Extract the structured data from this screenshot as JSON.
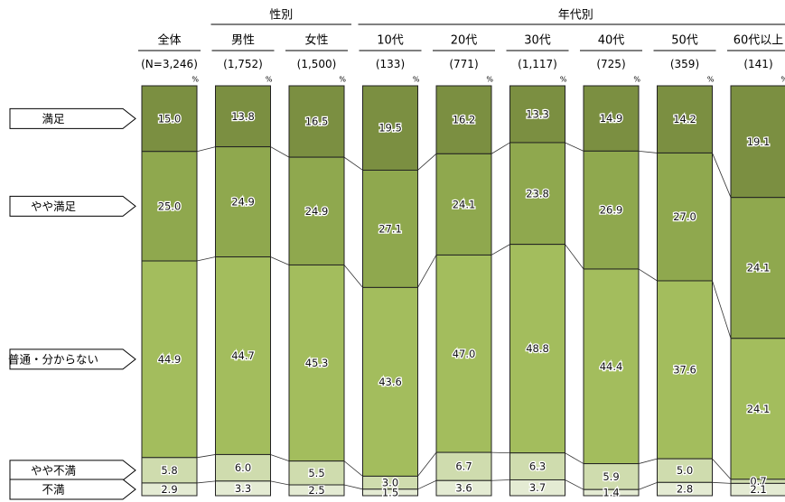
{
  "chart_data": {
    "type": "bar",
    "stacked": true,
    "orientation": "vertical",
    "unit": "%",
    "group_headers": [
      {
        "label": "性別",
        "columns": [
          1,
          2
        ]
      },
      {
        "label": "年代別",
        "columns": [
          3,
          4,
          5,
          6,
          7,
          8
        ]
      }
    ],
    "columns": [
      {
        "label": "全体",
        "n": "(N=3,246)"
      },
      {
        "label": "男性",
        "n": "(1,752)"
      },
      {
        "label": "女性",
        "n": "(1,500)"
      },
      {
        "label": "10代",
        "n": "(133)"
      },
      {
        "label": "20代",
        "n": "(771)"
      },
      {
        "label": "30代",
        "n": "(1,117)"
      },
      {
        "label": "40代",
        "n": "(725)"
      },
      {
        "label": "50代",
        "n": "(359)"
      },
      {
        "label": "60代以上",
        "n": "(141)"
      }
    ],
    "series": [
      {
        "name": "満足",
        "values": [
          15.0,
          13.8,
          16.5,
          19.5,
          16.2,
          13.3,
          14.9,
          14.2,
          19.1
        ]
      },
      {
        "name": "やや満足",
        "values": [
          25.0,
          24.9,
          24.9,
          27.1,
          24.1,
          23.8,
          26.9,
          27.0,
          24.1
        ]
      },
      {
        "name": "普通・分からない",
        "values": [
          44.9,
          44.7,
          45.3,
          43.6,
          47.0,
          48.8,
          44.4,
          37.6,
          24.1
        ]
      },
      {
        "name": "やや不満",
        "values": [
          5.8,
          6.0,
          5.5,
          3.0,
          6.7,
          6.3,
          5.9,
          5.0,
          0.7
        ]
      },
      {
        "name": "不満",
        "values": [
          2.9,
          3.3,
          2.5,
          1.5,
          3.6,
          3.7,
          1.4,
          2.8,
          2.1
        ]
      }
    ],
    "colors": [
      "#7b8f41",
      "#8fa84e",
      "#a3bd5d",
      "#cfdcae",
      "#e4ebd3"
    ],
    "ylim": [
      0,
      100
    ]
  }
}
